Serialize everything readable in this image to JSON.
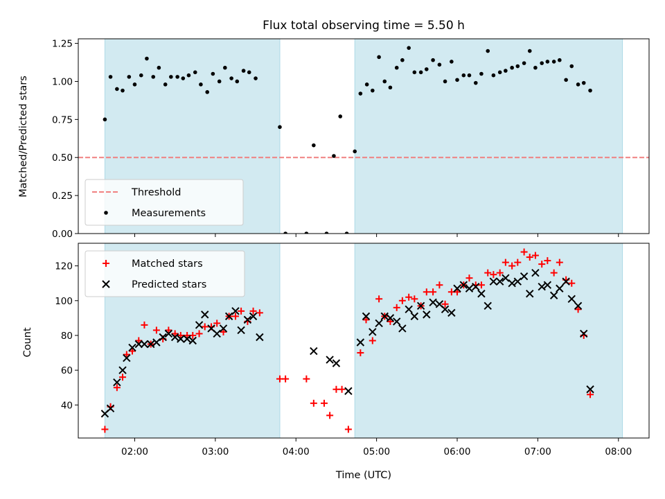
{
  "chart_data": {
    "type": "scatter",
    "title": "Flux total observing time = 5.50 h",
    "colors": {
      "shade": "#add8e6",
      "threshold": "#f08080",
      "measurements": "#000000",
      "matched": "#ff0000",
      "predicted": "#000000"
    },
    "shaded_intervals_hours": [
      [
        1.63,
        3.8
      ],
      [
        4.73,
        8.05
      ]
    ],
    "x_ticks": [
      "02:00",
      "03:00",
      "04:00",
      "05:00",
      "06:00",
      "07:00",
      "08:00"
    ],
    "x_tick_hours": [
      2,
      3,
      4,
      5,
      6,
      7,
      8
    ],
    "xlabel": "Time (UTC)",
    "xlim_hours": [
      1.3,
      8.38
    ],
    "panels": [
      {
        "ylabel": "Matched/Predicted stars",
        "ylim": [
          0,
          1.28
        ],
        "y_ticks": [
          "0.00",
          "0.25",
          "0.50",
          "0.75",
          "1.00",
          "1.25"
        ],
        "y_tick_values": [
          0,
          0.25,
          0.5,
          0.75,
          1.0,
          1.25
        ],
        "threshold": 0.5,
        "legend": [
          "Threshold",
          "Measurements"
        ],
        "legend_position": "lower-left",
        "measurements": [
          [
            1.63,
            0.75
          ],
          [
            1.7,
            1.03
          ],
          [
            1.78,
            0.95
          ],
          [
            1.85,
            0.94
          ],
          [
            1.93,
            1.03
          ],
          [
            2.0,
            0.98
          ],
          [
            2.08,
            1.04
          ],
          [
            2.15,
            1.15
          ],
          [
            2.23,
            1.03
          ],
          [
            2.3,
            1.09
          ],
          [
            2.38,
            0.98
          ],
          [
            2.45,
            1.03
          ],
          [
            2.53,
            1.03
          ],
          [
            2.6,
            1.02
          ],
          [
            2.67,
            1.04
          ],
          [
            2.75,
            1.06
          ],
          [
            2.82,
            0.98
          ],
          [
            2.9,
            0.93
          ],
          [
            2.97,
            1.05
          ],
          [
            3.05,
            1.0
          ],
          [
            3.12,
            1.09
          ],
          [
            3.2,
            1.02
          ],
          [
            3.27,
            1.0
          ],
          [
            3.35,
            1.07
          ],
          [
            3.42,
            1.06
          ],
          [
            3.5,
            1.02
          ],
          [
            3.8,
            0.7
          ],
          [
            3.87,
            0.0
          ],
          [
            4.13,
            0.0
          ],
          [
            4.22,
            0.58
          ],
          [
            4.38,
            0.0
          ],
          [
            4.47,
            0.51
          ],
          [
            4.55,
            0.77
          ],
          [
            4.63,
            0.0
          ],
          [
            4.73,
            0.54
          ],
          [
            4.8,
            0.92
          ],
          [
            4.88,
            0.98
          ],
          [
            4.95,
            0.94
          ],
          [
            5.03,
            1.16
          ],
          [
            5.1,
            1.0
          ],
          [
            5.17,
            0.96
          ],
          [
            5.25,
            1.09
          ],
          [
            5.32,
            1.14
          ],
          [
            5.4,
            1.22
          ],
          [
            5.47,
            1.06
          ],
          [
            5.55,
            1.06
          ],
          [
            5.62,
            1.08
          ],
          [
            5.7,
            1.14
          ],
          [
            5.78,
            1.11
          ],
          [
            5.85,
            1.0
          ],
          [
            5.93,
            1.13
          ],
          [
            6.0,
            1.01
          ],
          [
            6.08,
            1.04
          ],
          [
            6.15,
            1.04
          ],
          [
            6.23,
            0.99
          ],
          [
            6.3,
            1.05
          ],
          [
            6.38,
            1.2
          ],
          [
            6.45,
            1.04
          ],
          [
            6.53,
            1.06
          ],
          [
            6.6,
            1.07
          ],
          [
            6.68,
            1.09
          ],
          [
            6.75,
            1.1
          ],
          [
            6.83,
            1.12
          ],
          [
            6.9,
            1.2
          ],
          [
            6.97,
            1.09
          ],
          [
            7.05,
            1.12
          ],
          [
            7.12,
            1.13
          ],
          [
            7.2,
            1.13
          ],
          [
            7.27,
            1.14
          ],
          [
            7.35,
            1.01
          ],
          [
            7.42,
            1.1
          ],
          [
            7.5,
            0.98
          ],
          [
            7.57,
            0.99
          ],
          [
            7.65,
            0.94
          ]
        ]
      },
      {
        "ylabel": "Count",
        "ylim": [
          21,
          133
        ],
        "y_ticks": [
          "40",
          "60",
          "80",
          "100",
          "120"
        ],
        "y_tick_values": [
          40,
          60,
          80,
          100,
          120
        ],
        "legend": [
          "Matched stars",
          "Predicted stars"
        ],
        "legend_position": "upper-left",
        "matched": [
          [
            1.63,
            26
          ],
          [
            1.7,
            39
          ],
          [
            1.78,
            50
          ],
          [
            1.85,
            56
          ],
          [
            1.9,
            69
          ],
          [
            1.97,
            71
          ],
          [
            2.05,
            77
          ],
          [
            2.12,
            86
          ],
          [
            2.2,
            75
          ],
          [
            2.27,
            83
          ],
          [
            2.35,
            78
          ],
          [
            2.42,
            83
          ],
          [
            2.5,
            81
          ],
          [
            2.57,
            80
          ],
          [
            2.65,
            80
          ],
          [
            2.72,
            80
          ],
          [
            2.8,
            81
          ],
          [
            2.87,
            85
          ],
          [
            2.95,
            85
          ],
          [
            3.02,
            87
          ],
          [
            3.1,
            82
          ],
          [
            3.17,
            91
          ],
          [
            3.25,
            91
          ],
          [
            3.32,
            94
          ],
          [
            3.4,
            88
          ],
          [
            3.47,
            94
          ],
          [
            3.55,
            93
          ],
          [
            3.8,
            55
          ],
          [
            3.87,
            55
          ],
          [
            4.13,
            55
          ],
          [
            4.22,
            41
          ],
          [
            4.35,
            41
          ],
          [
            4.42,
            34
          ],
          [
            4.5,
            49
          ],
          [
            4.57,
            49
          ],
          [
            4.65,
            26
          ],
          [
            4.8,
            70
          ],
          [
            4.87,
            89
          ],
          [
            4.95,
            77
          ],
          [
            5.03,
            101
          ],
          [
            5.1,
            91
          ],
          [
            5.17,
            88
          ],
          [
            5.25,
            96
          ],
          [
            5.32,
            100
          ],
          [
            5.4,
            102
          ],
          [
            5.47,
            101
          ],
          [
            5.55,
            97
          ],
          [
            5.62,
            105
          ],
          [
            5.7,
            105
          ],
          [
            5.78,
            109
          ],
          [
            5.85,
            98
          ],
          [
            5.93,
            105
          ],
          [
            6.0,
            105
          ],
          [
            6.08,
            109
          ],
          [
            6.15,
            113
          ],
          [
            6.23,
            109
          ],
          [
            6.3,
            109
          ],
          [
            6.38,
            116
          ],
          [
            6.45,
            115
          ],
          [
            6.53,
            116
          ],
          [
            6.6,
            122
          ],
          [
            6.68,
            120
          ],
          [
            6.75,
            122
          ],
          [
            6.83,
            128
          ],
          [
            6.9,
            125
          ],
          [
            6.97,
            126
          ],
          [
            7.05,
            121
          ],
          [
            7.12,
            123
          ],
          [
            7.2,
            116
          ],
          [
            7.27,
            122
          ],
          [
            7.35,
            112
          ],
          [
            7.42,
            110
          ],
          [
            7.5,
            95
          ],
          [
            7.57,
            80
          ],
          [
            7.65,
            46
          ]
        ],
        "predicted": [
          [
            1.63,
            35
          ],
          [
            1.7,
            38
          ],
          [
            1.78,
            53
          ],
          [
            1.85,
            60
          ],
          [
            1.9,
            67
          ],
          [
            1.97,
            73
          ],
          [
            2.05,
            75
          ],
          [
            2.12,
            75
          ],
          [
            2.2,
            75
          ],
          [
            2.27,
            76
          ],
          [
            2.35,
            79
          ],
          [
            2.42,
            81
          ],
          [
            2.5,
            79
          ],
          [
            2.57,
            78
          ],
          [
            2.65,
            78
          ],
          [
            2.72,
            77
          ],
          [
            2.8,
            86
          ],
          [
            2.87,
            92
          ],
          [
            2.95,
            84
          ],
          [
            3.02,
            81
          ],
          [
            3.1,
            84
          ],
          [
            3.17,
            91
          ],
          [
            3.25,
            94
          ],
          [
            3.32,
            83
          ],
          [
            3.4,
            89
          ],
          [
            3.47,
            91
          ],
          [
            3.55,
            79
          ],
          [
            4.22,
            71
          ],
          [
            4.42,
            66
          ],
          [
            4.5,
            64
          ],
          [
            4.65,
            48
          ],
          [
            4.8,
            76
          ],
          [
            4.87,
            91
          ],
          [
            4.95,
            82
          ],
          [
            5.03,
            87
          ],
          [
            5.1,
            91
          ],
          [
            5.17,
            90
          ],
          [
            5.25,
            88
          ],
          [
            5.32,
            84
          ],
          [
            5.4,
            95
          ],
          [
            5.47,
            91
          ],
          [
            5.55,
            97
          ],
          [
            5.62,
            92
          ],
          [
            5.7,
            99
          ],
          [
            5.78,
            98
          ],
          [
            5.85,
            95
          ],
          [
            5.93,
            93
          ],
          [
            6.0,
            107
          ],
          [
            6.08,
            109
          ],
          [
            6.15,
            107
          ],
          [
            6.23,
            108
          ],
          [
            6.3,
            104
          ],
          [
            6.38,
            97
          ],
          [
            6.45,
            111
          ],
          [
            6.53,
            111
          ],
          [
            6.6,
            113
          ],
          [
            6.68,
            110
          ],
          [
            6.75,
            111
          ],
          [
            6.83,
            114
          ],
          [
            6.9,
            104
          ],
          [
            6.97,
            116
          ],
          [
            7.05,
            108
          ],
          [
            7.12,
            109
          ],
          [
            7.2,
            103
          ],
          [
            7.27,
            107
          ],
          [
            7.35,
            111
          ],
          [
            7.42,
            101
          ],
          [
            7.5,
            97
          ],
          [
            7.57,
            81
          ],
          [
            7.65,
            49
          ]
        ]
      }
    ]
  }
}
